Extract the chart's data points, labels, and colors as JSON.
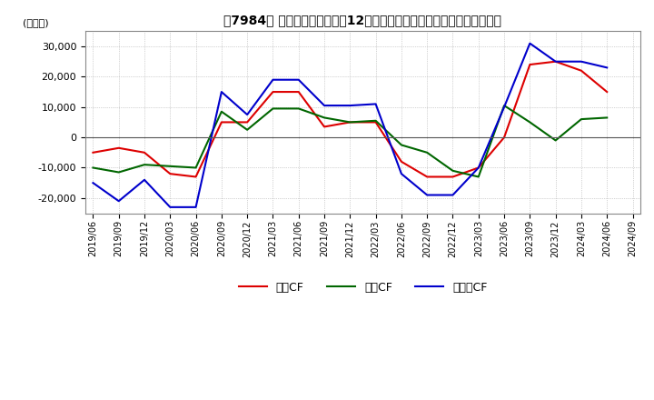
{
  "title": "【7984】 キャッシュフローの12か月移動合計の対前年同期増減額の推移",
  "ylabel": "(百万円)",
  "ylim": [
    -25000,
    35000
  ],
  "yticks": [
    -20000,
    -10000,
    0,
    10000,
    20000,
    30000
  ],
  "background_color": "#ffffff",
  "plot_bg_color": "#ffffff",
  "grid_color": "#aaaaaa",
  "labels": [
    "営業CF",
    "投資CF",
    "フリーCF"
  ],
  "colors": [
    "#dd0000",
    "#006600",
    "#0000cc"
  ],
  "x_labels": [
    "2019/06",
    "2019/09",
    "2019/12",
    "2020/03",
    "2020/06",
    "2020/09",
    "2020/12",
    "2021/03",
    "2021/06",
    "2021/09",
    "2021/12",
    "2022/03",
    "2022/06",
    "2022/09",
    "2022/12",
    "2023/03",
    "2023/06",
    "2023/09",
    "2023/12",
    "2024/03",
    "2024/06",
    "2024/09"
  ],
  "series": {
    "営業CF": [
      -5000,
      -3500,
      -5000,
      -12000,
      -13000,
      5000,
      5000,
      15000,
      15000,
      3500,
      5000,
      5000,
      -8000,
      -13000,
      -13000,
      -10000,
      0,
      24000,
      25000,
      22000,
      15000,
      null
    ],
    "投資CF": [
      -10000,
      -11500,
      -9000,
      -9500,
      -10000,
      8500,
      2500,
      9500,
      9500,
      6500,
      5000,
      5500,
      -2500,
      -5000,
      -11000,
      -13000,
      10500,
      5000,
      -1000,
      6000,
      6500,
      null
    ],
    "フリーCF": [
      -15000,
      -21000,
      -14000,
      -23000,
      -23000,
      15000,
      7500,
      19000,
      19000,
      10500,
      10500,
      11000,
      -12000,
      -19000,
      -19000,
      -10000,
      10000,
      31000,
      25000,
      25000,
      23000,
      null
    ]
  }
}
